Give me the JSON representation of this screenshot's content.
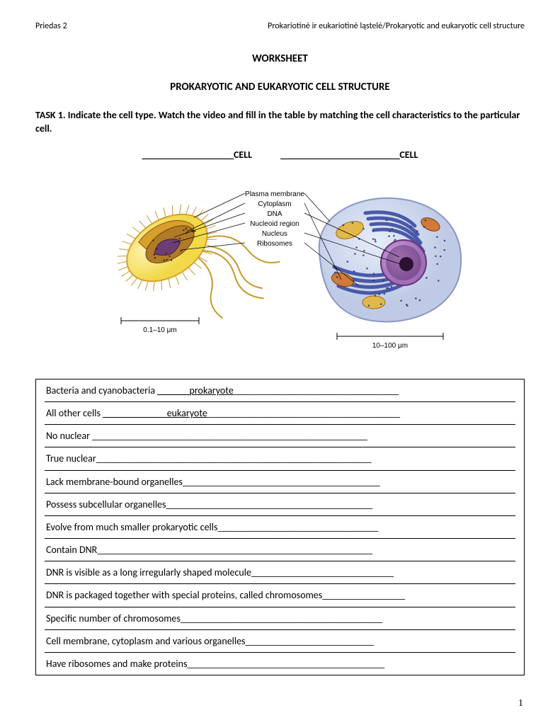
{
  "header": {
    "left": "Priedas 2",
    "right": "Prokariotinė ir eukariotinė ląstelė/Prokaryotic and eukaryotic cell structure"
  },
  "title1": "WORKSHEET",
  "title2": "PROKARYOTIC AND EUKARYOTIC CELL STRUCTURE",
  "task": "TASK 1. Indicate the cell type. Watch the video and fill in the table by matching the cell characteristics to the particular cell.",
  "cell_label_left_blank": "____________________",
  "cell_label_left_word": "CELL",
  "cell_label_right_blank": "__________________________",
  "cell_label_right_word": "CELL",
  "diagram": {
    "leftScale": "0.1–10 μm",
    "rightScale": "10–100 μm",
    "labels": [
      "Plasma membrane",
      "Cytoplasm",
      "DNA",
      "Nucleoid region",
      "Nucleus",
      "Ribosomes"
    ],
    "colors": {
      "prokOuter": "#f2d94a",
      "prokWall": "#d8a02a",
      "prokInner": "#b07a28",
      "nucleoid": "#6a3a7a",
      "flagella": "#c79a2a",
      "eukCyto": "#bfcbe6",
      "eukCytoEdge": "#8a97c2",
      "organelle1": "#e3b84a",
      "organelle2": "#d07b3a",
      "er": "#3b4aa0",
      "nucleusOuter": "#9f6fb8",
      "nucleusInner": "#6a3378",
      "nucleolus": "#2c1230",
      "scaleBar": "#000000"
    }
  },
  "rows": [
    {
      "pre": "Bacteria and cyanobacteria ",
      "ublank": "_______",
      "mid": "prokaryote",
      "tail": "____________________________________"
    },
    {
      "pre": "All other cells ",
      "ublank": "______________",
      "mid": "eukaryote",
      "tail": "__________________________________________"
    },
    {
      "pre": "No nuclear ",
      "ublank": "",
      "mid": "",
      "tail": "____________________________________________________________"
    },
    {
      "pre": "True nuclear",
      "ublank": "",
      "mid": "",
      "tail": "____________________________________________________________"
    },
    {
      "pre": "Lack membrane-bound organelles",
      "ublank": "",
      "mid": "",
      "tail": "___________________________________________"
    },
    {
      "pre": "Possess subcellular organelles",
      "ublank": "",
      "mid": "",
      "tail": "_____________________________________________"
    },
    {
      "pre": "Evolve from much smaller prokaryotic cells",
      "ublank": "",
      "mid": "",
      "tail": "___________________________________"
    },
    {
      "pre": "Contain DNR",
      "ublank": "",
      "mid": "",
      "tail": "____________________________________________________________"
    },
    {
      "pre": "DNR is visible as a long irregularly shaped molecule",
      "ublank": "",
      "mid": "",
      "tail": "_______________________________"
    },
    {
      "pre": "DNR is packaged together with special proteins, called chromosomes",
      "ublank": "",
      "mid": "",
      "tail": "__________________"
    },
    {
      "pre": "Specific number of chromosomes",
      "ublank": "",
      "mid": "",
      "tail": "____________________________________________"
    },
    {
      "pre": "Cell membrane, cytoplasm and various organelles",
      "ublank": "",
      "mid": "",
      "tail": "____________________________"
    },
    {
      "pre": "Have ribosomes and make proteins",
      "ublank": "",
      "mid": "",
      "tail": "___________________________________________"
    }
  ],
  "pageNumber": "1"
}
